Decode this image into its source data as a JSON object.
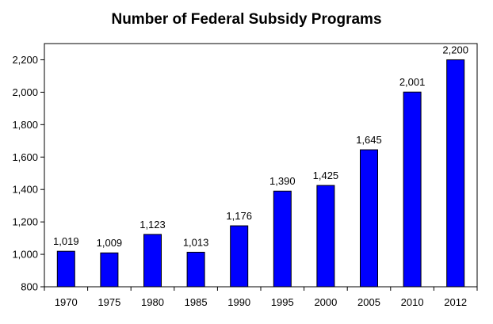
{
  "chart_data": {
    "type": "bar",
    "title": "Number of Federal Subsidy Programs",
    "categories": [
      "1970",
      "1975",
      "1980",
      "1985",
      "1990",
      "1995",
      "2000",
      "2005",
      "2010",
      "2012"
    ],
    "values": [
      1019,
      1009,
      1123,
      1013,
      1176,
      1390,
      1425,
      1645,
      2001,
      2200
    ],
    "value_labels": [
      "1,019",
      "1,009",
      "1,123",
      "1,013",
      "1,176",
      "1,390",
      "1,425",
      "1,645",
      "2,001",
      "2,200"
    ],
    "yticks": [
      800,
      1000,
      1200,
      1400,
      1600,
      1800,
      2000,
      2200
    ],
    "ytick_labels": [
      "800",
      "1,000",
      "1,200",
      "1,400",
      "1,600",
      "1,800",
      "2,000",
      "2,200"
    ],
    "ylim": [
      800,
      2300
    ],
    "xlabel": "",
    "ylabel": "",
    "grid": false,
    "legend": "none",
    "bar_color": "#0000ff",
    "bar_stroke": "#000000",
    "axis_color": "#000000"
  }
}
